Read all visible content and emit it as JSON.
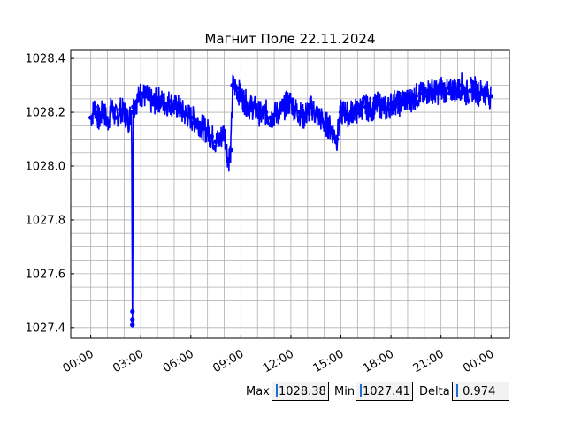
{
  "chart_data": {
    "type": "line",
    "title": "Магнит Поле 22.11.2024",
    "xlabel": "",
    "ylabel": "",
    "x_ticks": [
      "00:00",
      "03:00",
      "06:00",
      "09:00",
      "12:00",
      "15:00",
      "18:00",
      "21:00",
      "00:00"
    ],
    "x_tick_hours": [
      0,
      3,
      6,
      9,
      12,
      15,
      18,
      21,
      24
    ],
    "xlim_hours": [
      -1.2,
      25.1
    ],
    "y_ticks": [
      "1027.4",
      "1027.6",
      "1027.8",
      "1028.0",
      "1028.2",
      "1028.4"
    ],
    "y_tick_values": [
      1027.4,
      1027.6,
      1027.8,
      1028.0,
      1028.2,
      1028.4
    ],
    "ylim": [
      1027.36,
      1028.43
    ],
    "grid": true,
    "series": [
      {
        "color": "#0000ff",
        "marker": "circle",
        "points": [
          [
            0.0,
            1028.18
          ],
          [
            0.25,
            1028.22
          ],
          [
            0.5,
            1028.17
          ],
          [
            0.75,
            1028.21
          ],
          [
            1.0,
            1028.16
          ],
          [
            1.25,
            1028.22
          ],
          [
            1.5,
            1028.18
          ],
          [
            1.75,
            1028.21
          ],
          [
            2.0,
            1028.2
          ],
          [
            2.25,
            1028.17
          ],
          [
            2.45,
            1028.2
          ],
          [
            2.5,
            1027.41
          ],
          [
            2.55,
            1028.22
          ],
          [
            2.75,
            1028.24
          ],
          [
            3.0,
            1028.27
          ],
          [
            3.25,
            1028.26
          ],
          [
            3.5,
            1028.25
          ],
          [
            3.75,
            1028.23
          ],
          [
            4.0,
            1028.25
          ],
          [
            4.25,
            1028.24
          ],
          [
            4.5,
            1028.23
          ],
          [
            4.75,
            1028.24
          ],
          [
            5.0,
            1028.22
          ],
          [
            5.25,
            1028.22
          ],
          [
            5.5,
            1028.2
          ],
          [
            5.75,
            1028.19
          ],
          [
            6.0,
            1028.18
          ],
          [
            6.25,
            1028.17
          ],
          [
            6.5,
            1028.16
          ],
          [
            6.75,
            1028.14
          ],
          [
            7.0,
            1028.13
          ],
          [
            7.25,
            1028.11
          ],
          [
            7.5,
            1028.09
          ],
          [
            7.75,
            1028.1
          ],
          [
            8.0,
            1028.13
          ],
          [
            8.25,
            1028.02
          ],
          [
            8.4,
            1028.06
          ],
          [
            8.5,
            1028.3
          ],
          [
            8.75,
            1028.29
          ],
          [
            9.0,
            1028.26
          ],
          [
            9.25,
            1028.24
          ],
          [
            9.5,
            1028.22
          ],
          [
            9.75,
            1028.22
          ],
          [
            10.0,
            1028.2
          ],
          [
            10.25,
            1028.19
          ],
          [
            10.5,
            1028.2
          ],
          [
            10.75,
            1028.18
          ],
          [
            11.0,
            1028.19
          ],
          [
            11.25,
            1028.2
          ],
          [
            11.5,
            1028.21
          ],
          [
            11.75,
            1028.23
          ],
          [
            12.0,
            1028.24
          ],
          [
            12.25,
            1028.21
          ],
          [
            12.5,
            1028.2
          ],
          [
            12.75,
            1028.18
          ],
          [
            13.0,
            1028.2
          ],
          [
            13.25,
            1028.22
          ],
          [
            13.5,
            1028.19
          ],
          [
            13.75,
            1028.18
          ],
          [
            14.0,
            1028.16
          ],
          [
            14.25,
            1028.15
          ],
          [
            14.5,
            1028.13
          ],
          [
            14.75,
            1028.1
          ],
          [
            15.0,
            1028.2
          ],
          [
            15.25,
            1028.2
          ],
          [
            15.5,
            1028.19
          ],
          [
            15.75,
            1028.21
          ],
          [
            16.0,
            1028.2
          ],
          [
            16.25,
            1028.22
          ],
          [
            16.5,
            1028.22
          ],
          [
            16.75,
            1028.21
          ],
          [
            17.0,
            1028.22
          ],
          [
            17.25,
            1028.23
          ],
          [
            17.5,
            1028.22
          ],
          [
            17.75,
            1028.21
          ],
          [
            18.0,
            1028.23
          ],
          [
            18.25,
            1028.24
          ],
          [
            18.5,
            1028.23
          ],
          [
            18.75,
            1028.25
          ],
          [
            19.0,
            1028.24
          ],
          [
            19.25,
            1028.25
          ],
          [
            19.5,
            1028.26
          ],
          [
            19.75,
            1028.27
          ],
          [
            20.0,
            1028.26
          ],
          [
            20.25,
            1028.28
          ],
          [
            20.5,
            1028.28
          ],
          [
            20.75,
            1028.27
          ],
          [
            21.0,
            1028.29
          ],
          [
            21.25,
            1028.28
          ],
          [
            21.5,
            1028.27
          ],
          [
            21.75,
            1028.29
          ],
          [
            22.0,
            1028.28
          ],
          [
            22.25,
            1028.3
          ],
          [
            22.5,
            1028.27
          ],
          [
            22.75,
            1028.28
          ],
          [
            23.0,
            1028.29
          ],
          [
            23.25,
            1028.27
          ],
          [
            23.5,
            1028.28
          ],
          [
            23.75,
            1028.27
          ],
          [
            24.0,
            1028.26
          ]
        ]
      }
    ]
  },
  "stats": {
    "max_label": "Max",
    "max_value": "1028.38",
    "min_label": "Min",
    "min_value": "1027.41",
    "delta_label": "Delta",
    "delta_value": " 0.974"
  }
}
